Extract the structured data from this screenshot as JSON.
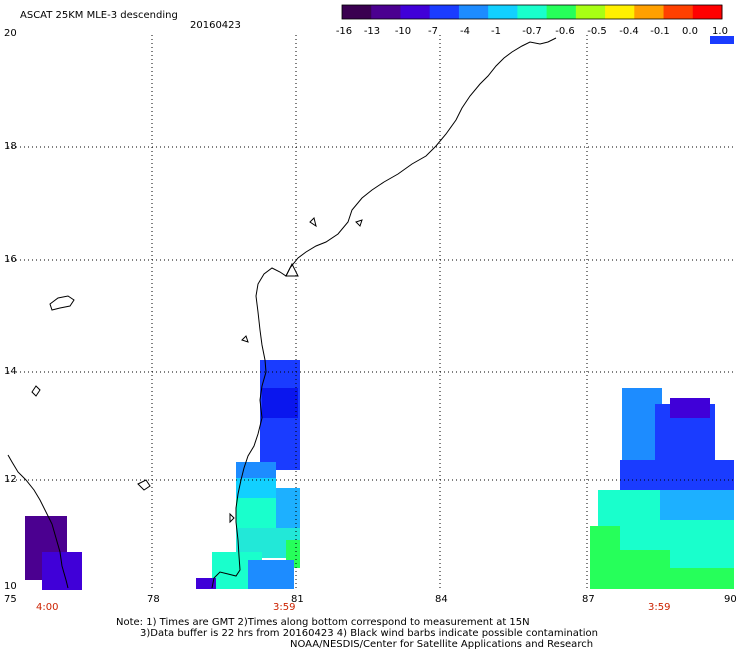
{
  "header": {
    "title": "ASCAT 25KM MLE-3 descending",
    "date": "20160423"
  },
  "colorbar": {
    "tick_labels": [
      "-16",
      "-13",
      "-10",
      "-7",
      "-4",
      "-1",
      "-0.7",
      "-0.6",
      "-0.5",
      "-0.4",
      "-0.1",
      "0.0",
      "1.0"
    ],
    "colors": [
      "#3a0050",
      "#4b0090",
      "#4000d8",
      "#1a3cff",
      "#1d8cff",
      "#12d0ff",
      "#19ffcc",
      "#26ff5a",
      "#a8ff14",
      "#fff000",
      "#ffa000",
      "#ff4000",
      "#ff0000"
    ]
  },
  "axes": {
    "lat_labels": [
      "20",
      "18",
      "16",
      "14",
      "12",
      "10"
    ],
    "lon_labels": [
      "75",
      "78",
      "81",
      "84",
      "87",
      "90"
    ]
  },
  "swath_times": [
    "4:00",
    "3:59",
    "3:59"
  ],
  "notes": {
    "line1": "Note: 1) Times are GMT 2)Times along bottom correspond to measurement at 15N",
    "line2": "3)Data buffer is 22 hrs from 20160423 4) Black wind barbs indicate possible contamination",
    "line3": "NOAA/NESDIS/Center for Satellite Applications and Research"
  }
}
